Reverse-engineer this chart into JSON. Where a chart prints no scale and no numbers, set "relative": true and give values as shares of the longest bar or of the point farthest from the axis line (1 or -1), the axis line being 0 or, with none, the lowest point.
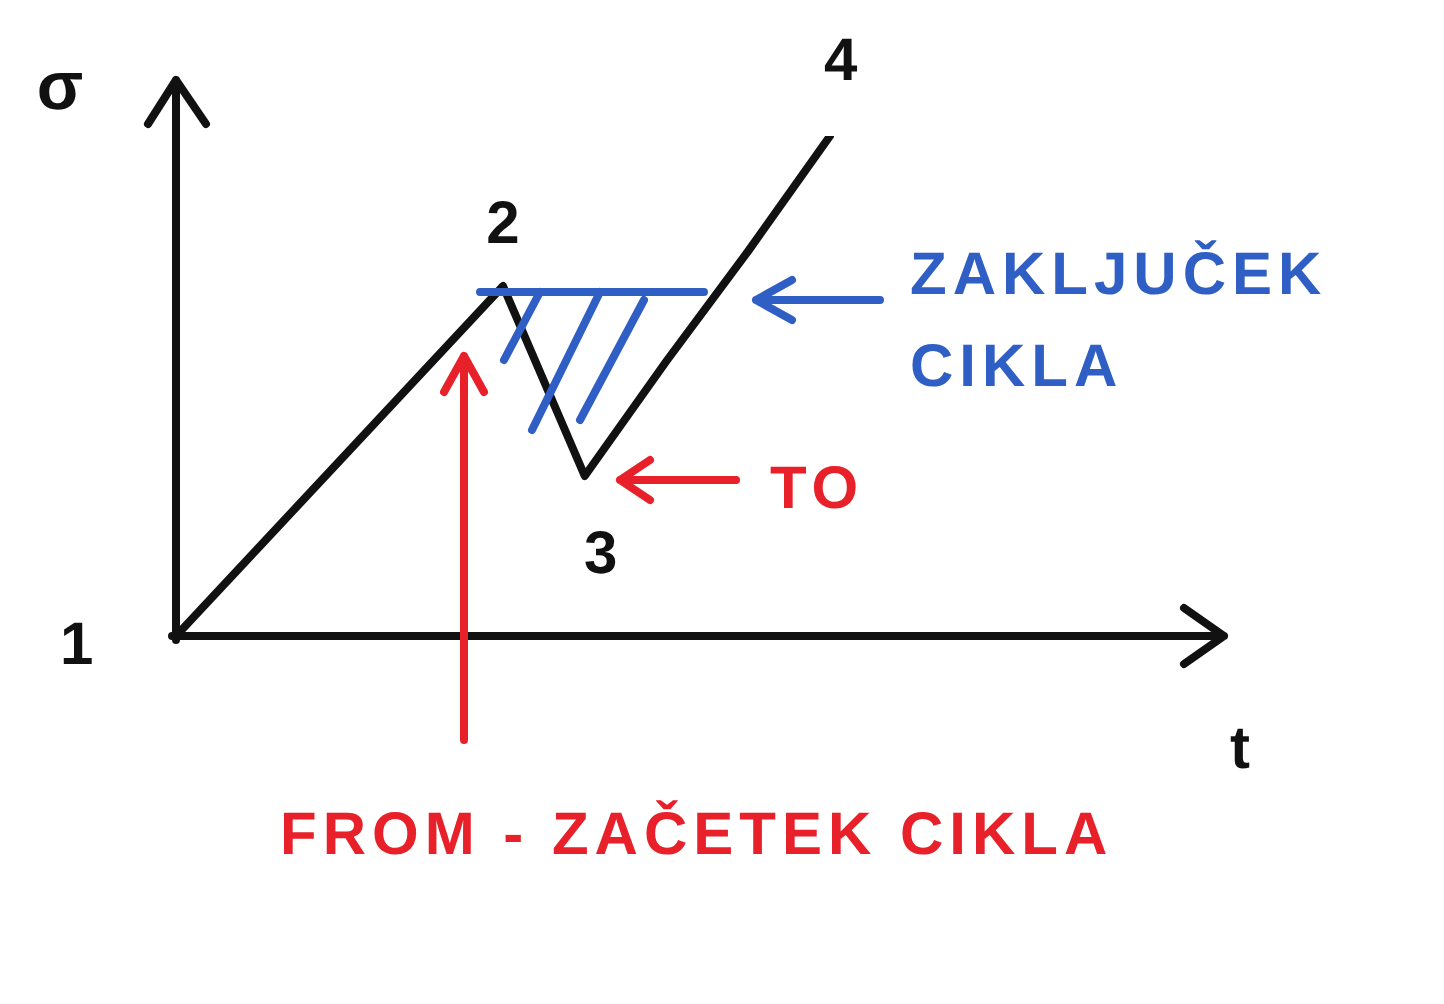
{
  "chart_data": {
    "type": "line",
    "relative": true,
    "ylabel": "σ",
    "categories": [
      null,
      null,
      null,
      null,
      null,
      null,
      null,
      null,
      null
    ],
    "series": [
      {
        "color": "#111111",
        "values": [
          0,
          0.175,
          0.35,
          0.525,
          0.7,
          0.32,
          0.55,
          0.77,
          1
        ]
      }
    ],
    "marker": "none",
    "annotations": [
      "ZAKLJUČEK CIKLA",
      "TO",
      "FROM - ZAČETEK CIKLA",
      "1",
      "4",
      "t",
      {
        "text": "2",
        "y": 0.7
      },
      {
        "text": "3",
        "y": 0.32
      }
    ]
  }
}
